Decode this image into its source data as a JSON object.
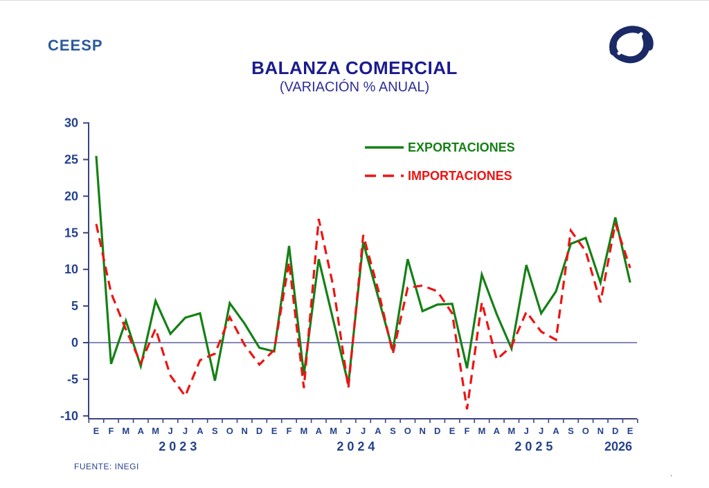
{
  "header": {
    "logo_text": "CEESP",
    "title": "BALANZA COMERCIAL",
    "subtitle": "(VARIACIÓN % ANUAL)",
    "brand_icon": "ceesp-swirl-logo"
  },
  "footer": {
    "source": "FUENTE: INEGI",
    "stray_mark": "."
  },
  "colors": {
    "exports_green": "#158015",
    "imports_red": "#ee1312",
    "axis_navy": "#3a4286",
    "axis_text_navy": "#24418c",
    "title_navy": "#1b1b8f",
    "logo_blue": "#2a5a9a"
  },
  "chart_data": {
    "type": "line",
    "title": "BALANZA COMERCIAL",
    "subtitle": "(VARIACIÓN % ANUAL)",
    "xlabel": "",
    "ylabel": "",
    "ylim": [
      -10,
      30
    ],
    "y_ticks": [
      30,
      25,
      20,
      15,
      10,
      5,
      0,
      -5,
      -10
    ],
    "grid": false,
    "zero_line": true,
    "legend_position": "inside-top-center",
    "categories": [
      "E",
      "F",
      "M",
      "A",
      "M",
      "J",
      "J",
      "A",
      "S",
      "O",
      "N",
      "D",
      "E",
      "F",
      "M",
      "A",
      "M",
      "J",
      "J",
      "A",
      "S",
      "O",
      "N",
      "D",
      "E",
      "F",
      "M",
      "A",
      "M",
      "J",
      "J",
      "A",
      "S",
      "O",
      "N",
      "D",
      "E"
    ],
    "years": [
      {
        "label": "2 0 2 3",
        "center_index": 5.5
      },
      {
        "label": "2 0 2 4",
        "center_index": 17.5
      },
      {
        "label": "2 0 2 5",
        "center_index": 29.5
      },
      {
        "label": "2026",
        "center_index": 35.2
      }
    ],
    "series": [
      {
        "name": "EXPORTACIONES",
        "style": "solid",
        "color": "#158015",
        "values": [
          25.5,
          -2.9,
          3.0,
          -3.2,
          5.7,
          1.2,
          3.4,
          4.0,
          -5.2,
          5.4,
          2.6,
          -0.7,
          -1.2,
          13.2,
          -4.4,
          11.4,
          2.9,
          -5.7,
          13.7,
          6.3,
          -1.1,
          11.4,
          4.3,
          5.2,
          5.3,
          -3.5,
          9.3,
          3.9,
          -0.8,
          10.6,
          4.0,
          7.0,
          13.5,
          14.3,
          8.2,
          17.1,
          8.2
        ]
      },
      {
        "name": "IMPORTACIONES",
        "style": "dashed",
        "color": "#ee1312",
        "values": [
          16.2,
          6.8,
          1.8,
          -2.8,
          1.9,
          -4.5,
          -7.3,
          -2.4,
          -1.5,
          3.5,
          -0.3,
          -3.0,
          -1.0,
          11.0,
          -6.2,
          16.9,
          7.5,
          -6.2,
          14.7,
          7.3,
          -1.5,
          7.5,
          7.8,
          7.0,
          4.0,
          -9.1,
          5.5,
          -2.3,
          -0.5,
          4.2,
          1.5,
          0.4,
          15.3,
          12.5,
          5.5,
          16.3,
          10.2
        ]
      }
    ]
  }
}
